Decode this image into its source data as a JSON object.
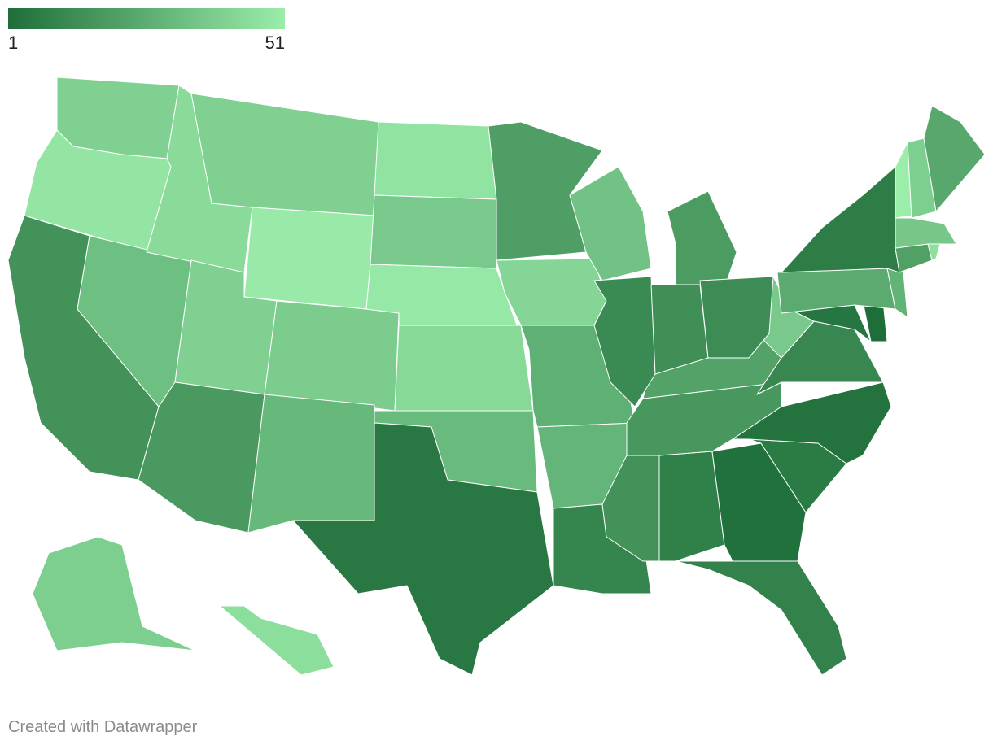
{
  "chart_data": {
    "type": "choropleth",
    "legend": {
      "min": 1,
      "max": 51,
      "colors": [
        "#1f6e3a",
        "#9bedaa"
      ]
    },
    "values": [
      40,
      48,
      15,
      33,
      44,
      40,
      50,
      40,
      38,
      18,
      30,
      47,
      37,
      49,
      43,
      31,
      5,
      20,
      42,
      27,
      29,
      10,
      15,
      8,
      2,
      9,
      6,
      3,
      17,
      22,
      11,
      37,
      4,
      1,
      25,
      28,
      7,
      21,
      46,
      36,
      51,
      39,
      24,
      19,
      34,
      12,
      14,
      13,
      39,
      45
    ],
    "credit": "Created with Datawrapper"
  }
}
